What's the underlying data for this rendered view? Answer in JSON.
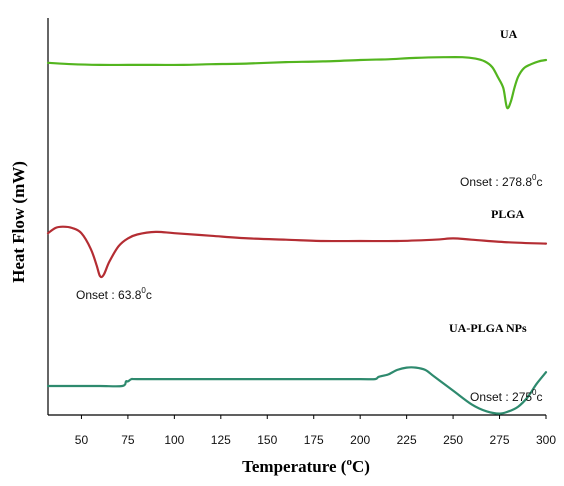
{
  "chart_data": {
    "type": "line",
    "xlabel_main": "Temperature (",
    "xlabel_sup": "o",
    "xlabel_end": "C)",
    "ylabel": "Heat Flow (mW)",
    "xlim": [
      32,
      300
    ],
    "x_ticks": [
      50,
      75,
      100,
      125,
      150,
      175,
      200,
      225,
      250,
      275,
      300
    ],
    "grid": false,
    "series": [
      {
        "name": "UA",
        "color": "#53b51f",
        "annotation": {
          "main": "Onset : 278.8",
          "sup": "0",
          "end": "c"
        },
        "x": [
          32,
          45,
          60,
          75,
          90,
          105,
          120,
          140,
          160,
          180,
          200,
          215,
          230,
          245,
          255,
          262,
          267,
          271,
          274,
          277,
          279,
          281,
          283,
          285,
          288,
          292,
          296,
          300
        ],
        "y": [
          0.73,
          0.72,
          0.715,
          0.715,
          0.715,
          0.715,
          0.72,
          0.725,
          0.735,
          0.74,
          0.75,
          0.755,
          0.765,
          0.77,
          0.77,
          0.76,
          0.74,
          0.7,
          0.63,
          0.55,
          0.41,
          0.45,
          0.55,
          0.63,
          0.69,
          0.72,
          0.74,
          0.75
        ]
      },
      {
        "name": "PLGA",
        "color": "#b42d33",
        "annotation": {
          "main": "Onset : 63.8",
          "sup": "0",
          "end": "c"
        },
        "x": [
          32,
          36,
          40,
          45,
          50,
          55,
          58,
          60,
          62,
          65,
          70,
          75,
          80,
          90,
          100,
          120,
          140,
          160,
          180,
          200,
          220,
          240,
          250,
          260,
          280,
          300
        ],
        "y": [
          0.18,
          0.2,
          0.205,
          0.2,
          0.18,
          0.12,
          0.06,
          0.015,
          0.02,
          0.07,
          0.13,
          0.16,
          0.175,
          0.185,
          0.18,
          0.17,
          0.16,
          0.155,
          0.15,
          0.15,
          0.15,
          0.155,
          0.16,
          0.155,
          0.145,
          0.14
        ]
      },
      {
        "name": "UA-PLGA NPs",
        "color": "#2e8a6e",
        "annotation": {
          "main": "Onset : 275",
          "sup": "0",
          "end": "c"
        },
        "x": [
          32,
          45,
          60,
          72,
          74,
          75,
          77,
          80,
          100,
          140,
          160,
          180,
          200,
          208,
          210,
          215,
          220,
          225,
          230,
          235,
          240,
          250,
          260,
          268,
          275,
          280,
          285,
          290,
          295,
          300
        ],
        "y": [
          -0.35,
          -0.35,
          -0.35,
          -0.35,
          -0.34,
          -0.34,
          -0.335,
          -0.335,
          -0.335,
          -0.335,
          -0.335,
          -0.335,
          -0.335,
          -0.335,
          -0.33,
          -0.325,
          -0.315,
          -0.31,
          -0.31,
          -0.315,
          -0.33,
          -0.36,
          -0.39,
          -0.405,
          -0.41,
          -0.405,
          -0.395,
          -0.375,
          -0.345,
          -0.32
        ]
      }
    ]
  }
}
